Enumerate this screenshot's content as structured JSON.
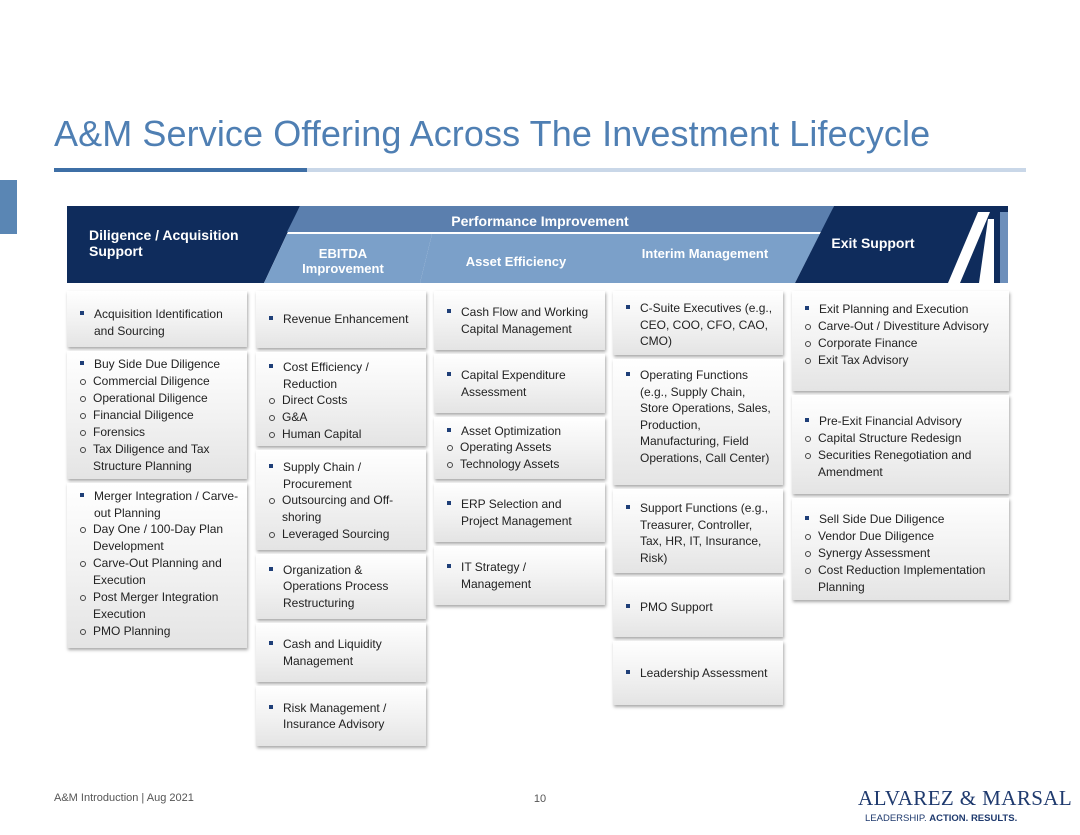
{
  "title": "A&M Service Offering Across The Investment Lifecycle",
  "colors": {
    "accent": "#4f7fb3",
    "navy": "#0f2c5c",
    "steel": "#5b7fae",
    "light_steel": "#7ba0c9"
  },
  "headers": {
    "diligence": "Diligence / Acquisition Support",
    "performance": "Performance Improvement",
    "ebitda": "EBITDA Improvement",
    "asset": "Asset Efficiency",
    "interim": "Interim Management",
    "exit": "Exit Support"
  },
  "columns": {
    "diligence": [
      {
        "label": "Acquisition Identification and Sourcing",
        "subs": []
      },
      {
        "label": "Buy Side Due Diligence",
        "subs": [
          "Commercial Diligence",
          "Operational Diligence",
          "Financial Diligence",
          "Forensics",
          "Tax Diligence and Tax Structure Planning"
        ]
      },
      {
        "label": "Merger Integration / Carve-out Planning",
        "subs": [
          "Day One / 100-Day Plan Development",
          "Carve-Out Planning and Execution",
          "Post Merger Integration Execution",
          "PMO Planning"
        ]
      }
    ],
    "ebitda": [
      {
        "label": "Revenue Enhancement",
        "subs": []
      },
      {
        "label": "Cost Efficiency / Reduction",
        "subs": [
          "Direct Costs",
          "G&A",
          "Human Capital"
        ]
      },
      {
        "label": "Supply Chain / Procurement",
        "subs": [
          "Outsourcing and Off-shoring",
          "Leveraged Sourcing"
        ]
      },
      {
        "label": "Organization & Operations Process Restructuring",
        "subs": []
      },
      {
        "label": "Cash and Liquidity Management",
        "subs": []
      },
      {
        "label": "Risk Management / Insurance Advisory",
        "subs": []
      }
    ],
    "asset": [
      {
        "label": "Cash Flow and Working Capital Management",
        "subs": []
      },
      {
        "label": "Capital Expenditure Assessment",
        "subs": []
      },
      {
        "label": "Asset Optimization",
        "subs": [
          "Operating Assets",
          "Technology Assets"
        ]
      },
      {
        "label": "ERP Selection and Project Management",
        "subs": []
      },
      {
        "label": "IT Strategy / Management",
        "subs": []
      }
    ],
    "interim": [
      {
        "label": "C-Suite Executives (e.g., CEO, COO, CFO, CAO, CMO)",
        "subs": []
      },
      {
        "label": "Operating Functions (e.g., Supply Chain, Store Operations, Sales, Production, Manufacturing, Field Operations, Call Center)",
        "subs": []
      },
      {
        "label": "Support Functions (e.g., Treasurer, Controller, Tax, HR, IT, Insurance, Risk)",
        "subs": []
      },
      {
        "label": "PMO Support",
        "subs": []
      },
      {
        "label": "Leadership Assessment",
        "subs": []
      }
    ],
    "exit": [
      {
        "label": "Exit Planning and Execution",
        "subs": [
          "Carve-Out / Divestiture Advisory",
          "Corporate Finance",
          "Exit Tax Advisory"
        ]
      },
      {
        "label": "Pre-Exit Financial Advisory",
        "subs": [
          "Capital Structure Redesign",
          "Securities Renegotiation and Amendment"
        ]
      },
      {
        "label": "Sell Side Due Diligence",
        "subs": [
          "Vendor Due Diligence",
          "Synergy Assessment",
          "Cost Reduction Implementation Planning"
        ]
      }
    ]
  },
  "footer": {
    "left": "A&M Introduction | Aug 2021",
    "page": "10"
  },
  "logo": {
    "name": "ALVAREZ & MARSAL",
    "tag_plain": "LEADERSHIP.",
    "tag_bold": "ACTION. RESULTS."
  }
}
